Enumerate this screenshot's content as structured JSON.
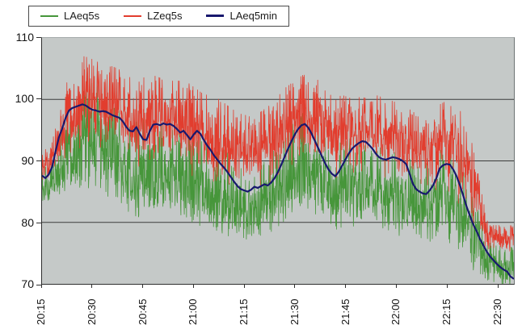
{
  "chart_data": {
    "type": "line",
    "title": "",
    "units": "dB",
    "plot_bg": "#c5c9c8",
    "grid": true,
    "grid_color": "#3c3c3c",
    "axis_color": "#2f2f2f",
    "legend_position": "top-left",
    "legend": [
      {
        "label": "LAeq5s",
        "color": "#46963a"
      },
      {
        "label": "LZeq5s",
        "color": "#e23d2e"
      },
      {
        "label": "LAeq5min",
        "color": "#18186e"
      }
    ],
    "ylim": [
      70,
      110
    ],
    "yticks": [
      110,
      100,
      90,
      80,
      70
    ],
    "gridline_values": [
      100,
      90,
      80
    ],
    "x_axis": {
      "tick_labels": [
        "20:15",
        "20:30",
        "20:45",
        "21:00",
        "21:15",
        "21:30",
        "21:45",
        "22:00",
        "22:15",
        "22:30"
      ],
      "tick_offsets_min": [
        0,
        15,
        30,
        45,
        60,
        75,
        90,
        105,
        120,
        135
      ],
      "total_min": 140,
      "tick_interval_min": 15
    },
    "series": [
      {
        "name": "LAeq5s",
        "color": "#46963a",
        "style": "jagged",
        "sample_interval_s": 5,
        "envelope_centers_min": [
          2.5,
          7.5,
          12.5,
          17.5,
          22.5,
          27.5,
          32.5,
          37.5,
          42.5,
          47.5,
          52.5,
          57.5,
          62.5,
          67.5,
          72.5,
          77.5,
          82.5,
          87.5,
          92.5,
          97.5,
          102.5,
          107.5,
          112.5,
          117.5,
          122.5,
          127.5,
          132.5,
          137.5
        ],
        "env_min": [
          83,
          85,
          85,
          85,
          82,
          80,
          82,
          82,
          80,
          79,
          78,
          77,
          77,
          78,
          80,
          82,
          80,
          78,
          79,
          80,
          78,
          77,
          76,
          77,
          76,
          72,
          70,
          69.5
        ],
        "env_max": [
          89,
          98,
          104,
          102,
          99,
          97,
          97,
          96,
          95,
          94,
          93,
          90,
          88,
          91,
          95,
          98,
          96,
          93,
          94,
          93,
          92,
          91,
          89,
          92,
          93,
          85,
          77,
          76
        ]
      },
      {
        "name": "LZeq5s",
        "color": "#e23d2e",
        "style": "jagged",
        "sample_interval_s": 5,
        "envelope_centers_min": [
          2.5,
          7.5,
          12.5,
          17.5,
          22.5,
          27.5,
          32.5,
          37.5,
          42.5,
          47.5,
          52.5,
          57.5,
          62.5,
          67.5,
          72.5,
          77.5,
          82.5,
          87.5,
          92.5,
          97.5,
          102.5,
          107.5,
          112.5,
          117.5,
          122.5,
          127.5,
          132.5,
          137.5
        ],
        "env_min": [
          85.5,
          88,
          89,
          89,
          87,
          86,
          87,
          87,
          85,
          84,
          83,
          82,
          83,
          83,
          85,
          87,
          85,
          84,
          84,
          85,
          84,
          83,
          82,
          82,
          81,
          76,
          73.5,
          74
        ],
        "env_max": [
          92,
          103,
          107,
          106,
          105,
          103,
          104,
          103,
          103,
          101,
          100,
          98,
          97,
          99,
          102,
          104,
          103,
          101,
          100,
          101,
          100,
          99,
          97,
          99,
          100.5,
          93,
          79.5,
          79.5
        ]
      },
      {
        "name": "LAeq5min",
        "color": "#18186e",
        "style": "smooth",
        "points": [
          [
            0,
            87.6
          ],
          [
            1,
            87.2
          ],
          [
            2,
            87.8
          ],
          [
            3,
            89.0
          ],
          [
            4,
            91.5
          ],
          [
            5,
            93.8
          ],
          [
            6,
            95.3
          ],
          [
            7,
            97.0
          ],
          [
            8,
            98.2
          ],
          [
            9,
            98.6
          ],
          [
            10,
            98.8
          ],
          [
            11,
            99.0
          ],
          [
            12,
            99.2
          ],
          [
            13,
            99.0
          ],
          [
            14,
            98.6
          ],
          [
            15,
            98.3
          ],
          [
            16,
            98.2
          ],
          [
            17,
            98.0
          ],
          [
            18,
            98.1
          ],
          [
            19,
            98.0
          ],
          [
            20,
            97.7
          ],
          [
            21,
            97.4
          ],
          [
            22,
            97.2
          ],
          [
            23,
            97.0
          ],
          [
            24,
            96.4
          ],
          [
            25,
            95.5
          ],
          [
            26,
            94.9
          ],
          [
            27,
            94.8
          ],
          [
            28,
            95.5
          ],
          [
            29,
            94.4
          ],
          [
            30,
            93.5
          ],
          [
            31,
            93.4
          ],
          [
            32,
            94.9
          ],
          [
            33,
            95.9
          ],
          [
            34,
            96.0
          ],
          [
            35,
            95.8
          ],
          [
            36,
            96.1
          ],
          [
            37,
            95.9
          ],
          [
            38,
            96.0
          ],
          [
            39,
            95.7
          ],
          [
            40,
            95.2
          ],
          [
            41,
            94.6
          ],
          [
            42,
            94.9
          ],
          [
            43,
            94.2
          ],
          [
            44,
            93.5
          ],
          [
            45,
            94.3
          ],
          [
            46,
            94.9
          ],
          [
            47,
            94.4
          ],
          [
            48,
            93.4
          ],
          [
            49,
            92.5
          ],
          [
            50,
            91.8
          ],
          [
            51,
            90.9
          ],
          [
            52,
            90.2
          ],
          [
            53,
            89.5
          ],
          [
            54,
            88.9
          ],
          [
            55,
            88.2
          ],
          [
            56,
            87.4
          ],
          [
            57,
            86.6
          ],
          [
            58,
            85.9
          ],
          [
            59,
            85.4
          ],
          [
            60,
            85.2
          ],
          [
            61,
            85.0
          ],
          [
            62,
            85.3
          ],
          [
            63,
            85.8
          ],
          [
            64,
            85.6
          ],
          [
            65,
            85.9
          ],
          [
            66,
            86.2
          ],
          [
            67,
            86.0
          ],
          [
            68,
            86.5
          ],
          [
            69,
            87.2
          ],
          [
            70,
            88.2
          ],
          [
            71,
            89.4
          ],
          [
            72,
            90.7
          ],
          [
            73,
            92.0
          ],
          [
            74,
            93.2
          ],
          [
            75,
            94.3
          ],
          [
            76,
            95.2
          ],
          [
            77,
            95.8
          ],
          [
            78,
            96.0
          ],
          [
            79,
            95.4
          ],
          [
            80,
            94.4
          ],
          [
            81,
            93.2
          ],
          [
            82,
            92.0
          ],
          [
            83,
            90.8
          ],
          [
            84,
            89.6
          ],
          [
            85,
            88.6
          ],
          [
            86,
            87.9
          ],
          [
            87,
            87.5
          ],
          [
            88,
            88.2
          ],
          [
            89,
            89.2
          ],
          [
            90,
            90.2
          ],
          [
            91,
            91.2
          ],
          [
            92,
            92.0
          ],
          [
            93,
            92.5
          ],
          [
            94,
            92.9
          ],
          [
            95,
            93.2
          ],
          [
            96,
            93.1
          ],
          [
            97,
            92.6
          ],
          [
            98,
            92.0
          ],
          [
            99,
            91.2
          ],
          [
            100,
            90.6
          ],
          [
            101,
            90.3
          ],
          [
            102,
            90.2
          ],
          [
            103,
            90.4
          ],
          [
            104,
            90.6
          ],
          [
            105,
            90.5
          ],
          [
            106,
            90.3
          ],
          [
            107,
            90.0
          ],
          [
            108,
            89.5
          ],
          [
            109,
            88.0
          ],
          [
            110,
            86.3
          ],
          [
            111,
            85.4
          ],
          [
            112,
            85.0
          ],
          [
            113,
            84.7
          ],
          [
            114,
            84.6
          ],
          [
            115,
            85.2
          ],
          [
            116,
            86.0
          ],
          [
            117,
            87.2
          ],
          [
            118,
            88.8
          ],
          [
            119,
            89.3
          ],
          [
            120,
            89.5
          ],
          [
            121,
            89.4
          ],
          [
            122,
            88.6
          ],
          [
            123,
            87.5
          ],
          [
            124,
            86.0
          ],
          [
            125,
            84.3
          ],
          [
            126,
            82.5
          ],
          [
            127,
            81.0
          ],
          [
            128,
            79.6
          ],
          [
            129,
            78.5
          ],
          [
            130,
            77.2
          ],
          [
            131,
            76.2
          ],
          [
            132,
            75.2
          ],
          [
            133,
            74.4
          ],
          [
            134,
            73.8
          ],
          [
            135,
            73.2
          ],
          [
            136,
            72.7
          ],
          [
            137,
            72.3
          ],
          [
            138,
            72.0
          ],
          [
            139,
            71.2
          ],
          [
            140,
            70.8
          ]
        ]
      }
    ]
  }
}
